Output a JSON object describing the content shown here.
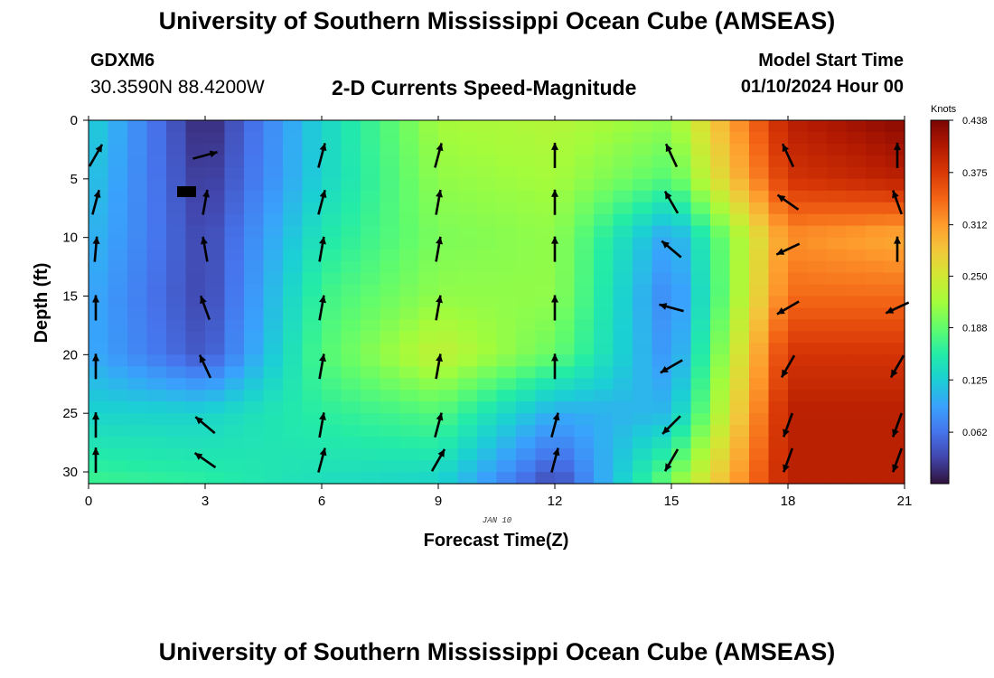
{
  "header": {
    "title": "University of Southern Mississippi Ocean Cube (AMSEAS)",
    "station_id": "GDXM6",
    "station_coords": "30.3590N  88.4200W",
    "plot_title": "2-D Currents Speed-Magnitude",
    "model_start_label": "Model Start Time",
    "model_start_value": "01/10/2024 Hour 00"
  },
  "footer": {
    "title": "University of Southern Mississippi Ocean Cube (AMSEAS)"
  },
  "chart_data": {
    "type": "heatmap",
    "xlabel": "Forecast Time(Z)",
    "ylabel": "Depth (ft)",
    "date_label": "JAN 10",
    "x_ticks": [
      0,
      3,
      6,
      9,
      12,
      15,
      18,
      21
    ],
    "y_ticks": [
      0,
      5,
      10,
      15,
      20,
      25,
      30
    ],
    "xlim": [
      0,
      21
    ],
    "ylim": [
      0,
      31
    ],
    "y_inverted": true,
    "colorbar": {
      "label": "Knots",
      "ticks": [
        "0.438",
        "0.375",
        "0.312",
        "0.250",
        "0.188",
        "0.125",
        "0.062"
      ],
      "range": [
        0,
        0.438
      ]
    },
    "colormap": [
      "#30123b",
      "#4145ab",
      "#4675ed",
      "#39a2fc",
      "#1bcfd4",
      "#24eca6",
      "#61fc6c",
      "#a4fc3b",
      "#d1e834",
      "#f3c63a",
      "#fe9b2d",
      "#f36315",
      "#d93806",
      "#b11901",
      "#7a0403"
    ],
    "speed_grid": {
      "x": [
        0,
        3,
        6,
        9,
        12,
        15,
        18,
        21
      ],
      "depth": [
        0,
        5,
        10,
        15,
        20,
        25,
        31
      ],
      "values": [
        [
          0.13,
          0.01,
          0.13,
          0.22,
          0.23,
          0.21,
          0.4,
          0.43
        ],
        [
          0.12,
          0.02,
          0.13,
          0.21,
          0.22,
          0.18,
          0.38,
          0.4
        ],
        [
          0.11,
          0.03,
          0.15,
          0.2,
          0.21,
          0.09,
          0.32,
          0.3
        ],
        [
          0.1,
          0.03,
          0.17,
          0.21,
          0.21,
          0.07,
          0.34,
          0.34
        ],
        [
          0.1,
          0.04,
          0.18,
          0.24,
          0.19,
          0.08,
          0.38,
          0.38
        ],
        [
          0.13,
          0.13,
          0.16,
          0.18,
          0.1,
          0.11,
          0.4,
          0.4
        ],
        [
          0.17,
          0.16,
          0.14,
          0.13,
          0.03,
          0.2,
          0.4,
          0.4
        ]
      ]
    },
    "vectors": {
      "times": [
        0,
        3,
        6,
        9,
        12,
        15,
        18,
        21
      ],
      "depths": [
        3,
        7,
        11,
        16,
        21,
        26,
        29
      ],
      "directions_deg": [
        [
          30,
          75,
          15,
          15,
          0,
          335,
          335,
          0
        ],
        [
          15,
          10,
          15,
          10,
          0,
          330,
          305,
          340
        ],
        [
          5,
          350,
          10,
          10,
          0,
          310,
          245,
          0
        ],
        [
          0,
          340,
          10,
          10,
          0,
          285,
          240,
          245
        ],
        [
          0,
          335,
          10,
          10,
          0,
          240,
          210,
          210
        ],
        [
          0,
          310,
          10,
          15,
          15,
          225,
          200,
          200
        ],
        [
          0,
          305,
          15,
          30,
          15,
          210,
          200,
          200
        ]
      ]
    }
  }
}
